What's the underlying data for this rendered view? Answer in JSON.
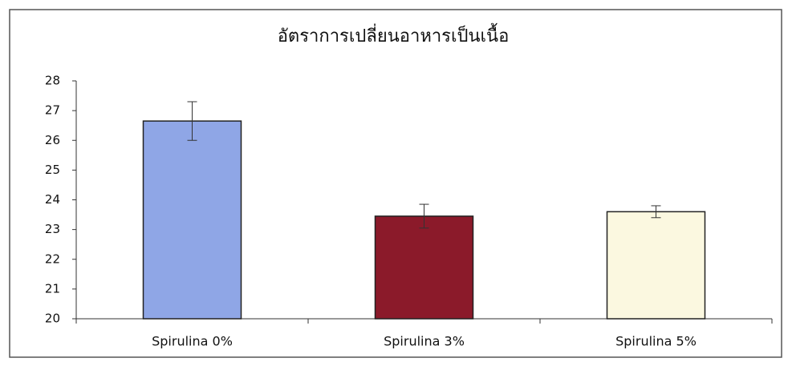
{
  "chart_data": {
    "type": "bar",
    "title": "อัตราการเปลี่ยนอาหารเป็นเนื้อ",
    "categories": [
      "Spirulina 0%",
      "Spirulina 3%",
      "Spirulina 5%"
    ],
    "values": [
      26.65,
      23.45,
      23.6
    ],
    "errors": [
      0.65,
      0.4,
      0.2
    ],
    "colors": [
      "#8fa6e6",
      "#8b1a2a",
      "#fbf8e0"
    ],
    "ylim": [
      20,
      28
    ],
    "yticks": [
      20,
      21,
      22,
      23,
      24,
      25,
      26,
      27,
      28
    ],
    "grid": false
  }
}
